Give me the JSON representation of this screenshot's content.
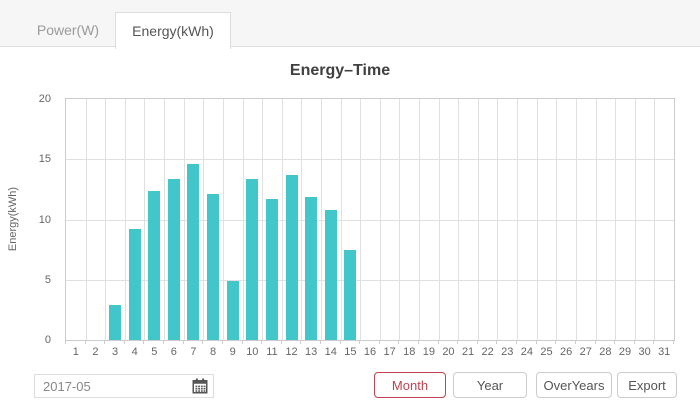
{
  "tabs": [
    {
      "label": "Power(W)",
      "active": false
    },
    {
      "label": "Energy(kWh)",
      "active": true
    }
  ],
  "chart_data": {
    "type": "bar",
    "title": "Energy–Time",
    "categories": [
      1,
      2,
      3,
      4,
      5,
      6,
      7,
      8,
      9,
      10,
      11,
      12,
      13,
      14,
      15,
      16,
      17,
      18,
      19,
      20,
      21,
      22,
      23,
      24,
      25,
      26,
      27,
      28,
      29,
      30,
      31
    ],
    "values": [
      null,
      null,
      2.9,
      9.2,
      12.4,
      13.4,
      14.6,
      12.1,
      4.9,
      13.4,
      11.7,
      13.7,
      11.9,
      10.8,
      7.5,
      null,
      null,
      null,
      null,
      null,
      null,
      null,
      null,
      null,
      null,
      null,
      null,
      null,
      null,
      null,
      null
    ],
    "xlabel": "",
    "ylabel": "Energy(kWh)",
    "ylim": [
      0,
      20
    ],
    "yticks": [
      0,
      5,
      10,
      15,
      20
    ],
    "grid": true,
    "legend": "none",
    "bar_color": "#41c7c9"
  },
  "controls": {
    "date_value": "2017-05",
    "calendar_icon": "calendar-icon",
    "buttons": [
      {
        "label": "Month",
        "active": true
      },
      {
        "label": "Year",
        "active": false
      },
      {
        "label": "OverYears",
        "active": false
      },
      {
        "label": "Export",
        "active": false
      }
    ]
  },
  "colors": {
    "bar": "#41c7c9",
    "active_button": "#c24251",
    "grid_line": "#e0e0e0",
    "axis_border": "#cccccc",
    "tab_strip_bg": "#f6f6f6",
    "text_muted": "#666666"
  }
}
